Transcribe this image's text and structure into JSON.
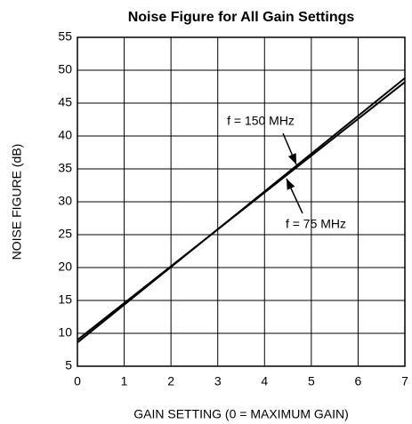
{
  "chart_data": {
    "type": "line",
    "title": "Noise Figure for All Gain Settings",
    "x_label": "GAIN SETTING (0 = MAXIMUM GAIN)",
    "y_label": "NOISE FIGURE (dB)",
    "x": [
      0,
      7
    ],
    "series": [
      {
        "name": "f = 150 MHz",
        "color": "#000000",
        "values": [
          8.6,
          48.8
        ]
      },
      {
        "name": "f = 75 MHz",
        "color": "#000000",
        "values": [
          9.0,
          48.2
        ]
      }
    ],
    "xlim": [
      0,
      7
    ],
    "xticks": [
      0,
      1,
      2,
      3,
      4,
      5,
      6,
      7
    ],
    "ylim": [
      5,
      55
    ],
    "yticks": [
      5,
      10,
      15,
      20,
      25,
      30,
      35,
      40,
      45,
      50,
      55
    ],
    "grid": true
  }
}
